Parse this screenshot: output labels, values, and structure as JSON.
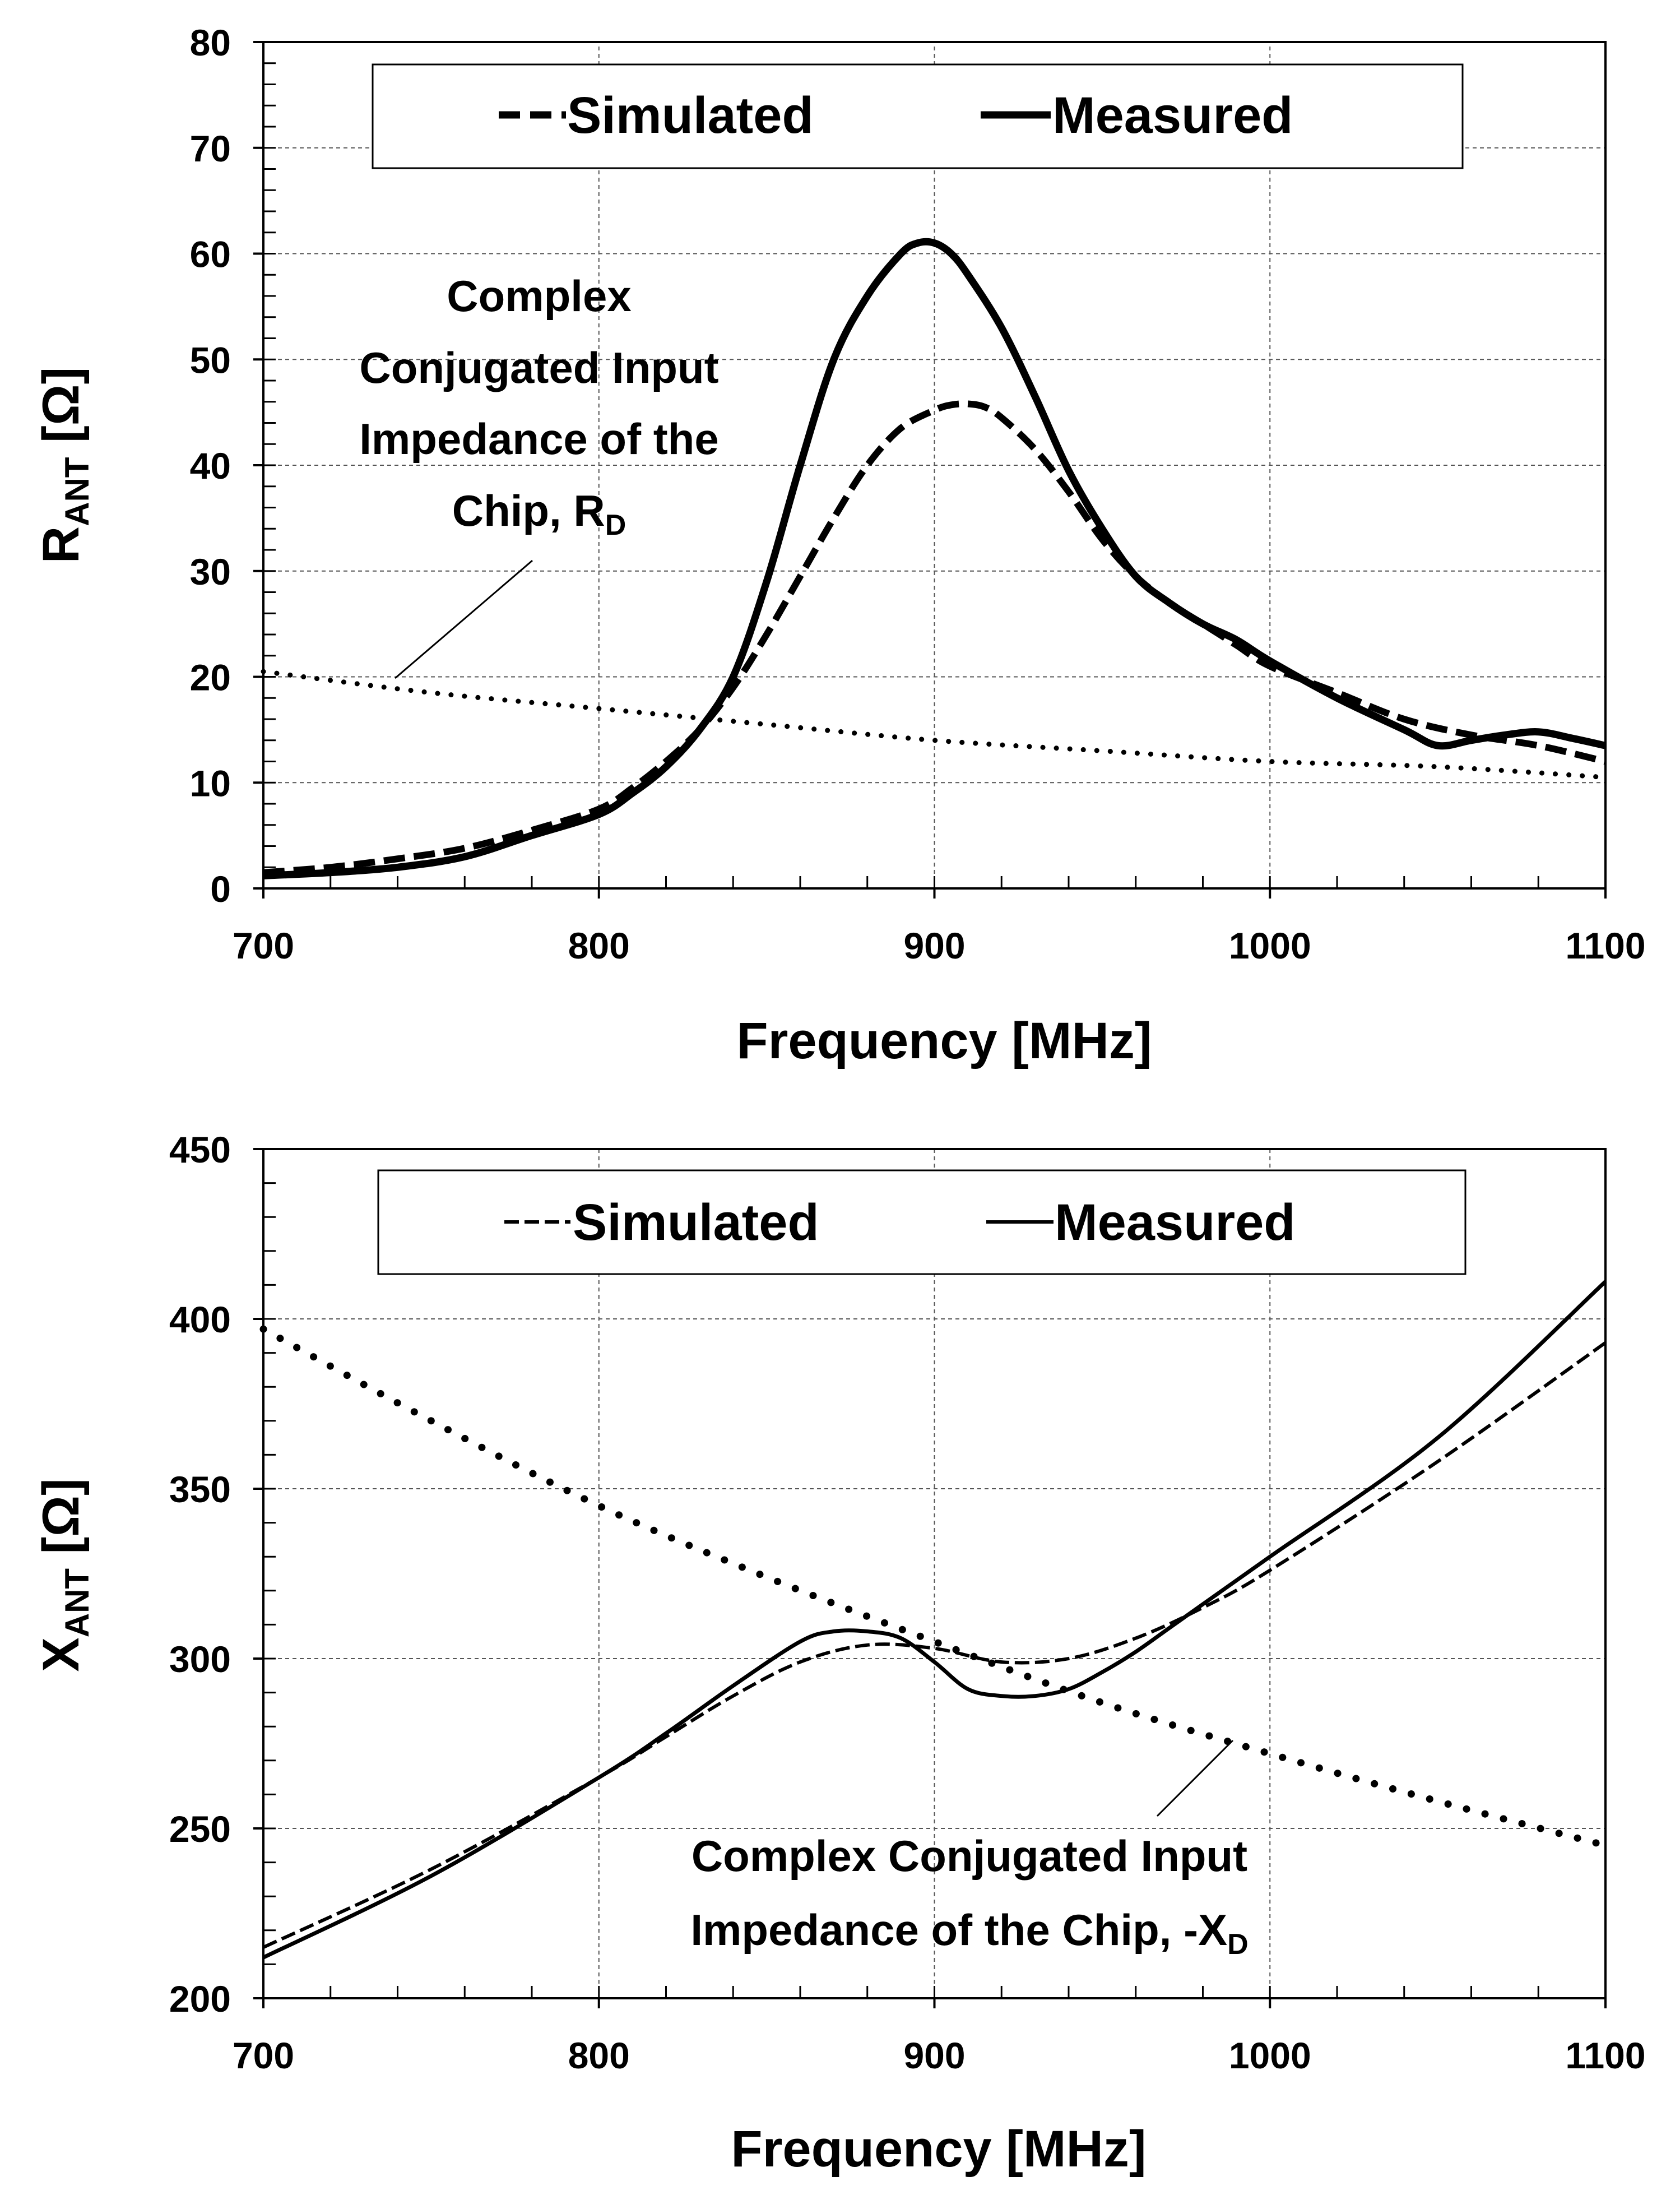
{
  "figure": {
    "charts": [
      {
        "id": "top",
        "xlabel": "Frequency [MHz]",
        "ylabel_main": "R",
        "ylabel_sub": "ANT",
        "ylabel_tail": " [Ω]",
        "legend": {
          "simulated": "Simulated",
          "measured": "Measured"
        },
        "annotation": {
          "lines": [
            "Complex",
            "Conjugated Input",
            "Impedance of the"
          ],
          "last_line_main": "Chip, R",
          "last_line_sub": "D"
        }
      },
      {
        "id": "bottom",
        "xlabel": "Frequency [MHz]",
        "ylabel_main": "X",
        "ylabel_sub": "ANT",
        "ylabel_tail": " [Ω]",
        "legend": {
          "simulated": "Simulated",
          "measured": "Measured"
        },
        "annotation": {
          "lines": [
            "Complex Conjugated Input"
          ],
          "last_line_main": "Impedance of the Chip, -X",
          "last_line_sub": "D"
        }
      }
    ]
  },
  "chart_data": [
    {
      "type": "line",
      "title": "",
      "xlabel": "Frequency [MHz]",
      "ylabel": "R_ANT [Ω]",
      "xlim": [
        700,
        1100
      ],
      "ylim": [
        0,
        80
      ],
      "xticks": [
        700,
        800,
        900,
        1000,
        1100
      ],
      "yticks": [
        0,
        10,
        20,
        30,
        40,
        50,
        60,
        70,
        80
      ],
      "grid": true,
      "legend_position": "top-center",
      "series": [
        {
          "name": "Simulated",
          "style": "dashed",
          "x": [
            700,
            720,
            740,
            760,
            780,
            800,
            810,
            820,
            830,
            840,
            850,
            860,
            870,
            880,
            890,
            900,
            905,
            910,
            915,
            920,
            930,
            940,
            950,
            960,
            970,
            980,
            990,
            1000,
            1020,
            1040,
            1060,
            1080,
            1100
          ],
          "y": [
            1.5,
            2.0,
            2.8,
            3.8,
            5.5,
            7.5,
            9.5,
            12.0,
            15.0,
            19.0,
            24.0,
            29.5,
            35.0,
            40.0,
            43.5,
            45.2,
            45.7,
            45.8,
            45.5,
            44.5,
            41.5,
            37.5,
            33.0,
            29.5,
            27.0,
            25.0,
            23.0,
            21.0,
            18.5,
            16.0,
            14.5,
            13.5,
            12.0
          ]
        },
        {
          "name": "Measured",
          "style": "solid",
          "x": [
            700,
            720,
            740,
            760,
            780,
            800,
            810,
            820,
            830,
            840,
            850,
            860,
            870,
            880,
            890,
            895,
            900,
            905,
            910,
            920,
            930,
            940,
            950,
            960,
            970,
            980,
            990,
            1000,
            1020,
            1040,
            1050,
            1060,
            1070,
            1080,
            1090,
            1100
          ],
          "y": [
            1.2,
            1.5,
            2.0,
            3.0,
            5.0,
            7.0,
            9.0,
            11.5,
            15.0,
            20.0,
            29.0,
            40.0,
            50.0,
            56.0,
            60.0,
            61.0,
            61.0,
            60.0,
            58.0,
            53.0,
            46.5,
            39.5,
            34.0,
            29.5,
            27.0,
            25.0,
            23.5,
            21.5,
            18.0,
            15.0,
            13.5,
            14.0,
            14.5,
            14.8,
            14.2,
            13.5
          ]
        },
        {
          "name": "Complex Conjugated Input Impedance of the Chip, R_D",
          "style": "dotted",
          "x": [
            700,
            750,
            800,
            850,
            900,
            950,
            1000,
            1050,
            1100
          ],
          "y": [
            20.5,
            18.5,
            17.0,
            15.5,
            14.0,
            13.0,
            12.0,
            11.5,
            10.5
          ]
        }
      ]
    },
    {
      "type": "line",
      "title": "",
      "xlabel": "Frequency [MHz]",
      "ylabel": "X_ANT [Ω]",
      "xlim": [
        700,
        1100
      ],
      "ylim": [
        200,
        450
      ],
      "xticks": [
        700,
        800,
        900,
        1000,
        1100
      ],
      "yticks": [
        200,
        250,
        300,
        350,
        400,
        450
      ],
      "grid": true,
      "legend_position": "top-center",
      "series": [
        {
          "name": "Simulated",
          "style": "dashed",
          "x": [
            700,
            750,
            800,
            820,
            840,
            860,
            880,
            900,
            920,
            940,
            960,
            980,
            1000,
            1050,
            1100
          ],
          "y": [
            215,
            238,
            265,
            277,
            289,
            299,
            304,
            303,
            299,
            300,
            306,
            315,
            326,
            358,
            393
          ]
        },
        {
          "name": "Measured",
          "style": "solid",
          "x": [
            700,
            750,
            800,
            820,
            840,
            860,
            870,
            880,
            890,
            900,
            910,
            920,
            930,
            940,
            950,
            960,
            970,
            980,
            1000,
            1050,
            1100
          ],
          "y": [
            212,
            236,
            265,
            278,
            292,
            305,
            308,
            308,
            306,
            299,
            291,
            289,
            289,
            291,
            296,
            302,
            309,
            316,
            330,
            365,
            411
          ]
        },
        {
          "name": "Complex Conjugated Input Impedance of the Chip, -X_D",
          "style": "dotted",
          "x": [
            700,
            750,
            800,
            850,
            900,
            950,
            1000,
            1050,
            1100
          ],
          "y": [
            397,
            370,
            345,
            324,
            305,
            287,
            272,
            258,
            245
          ]
        }
      ]
    }
  ]
}
